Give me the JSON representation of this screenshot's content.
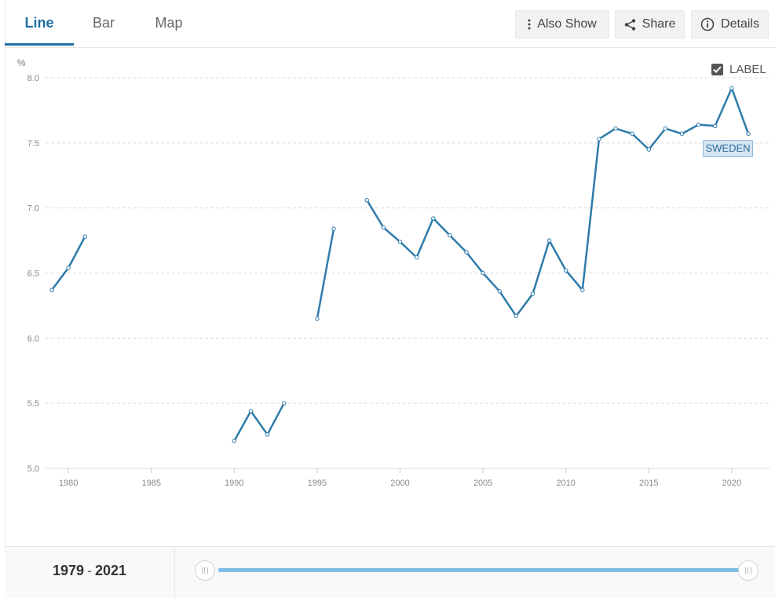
{
  "tabs": [
    {
      "label": "Line",
      "active": true
    },
    {
      "label": "Bar",
      "active": false
    },
    {
      "label": "Map",
      "active": false
    }
  ],
  "actions": {
    "also_show": "Also Show",
    "share": "Share",
    "details": "Details"
  },
  "label_toggle": {
    "text": "LABEL",
    "checked": true
  },
  "series_tag": "SWEDEN",
  "colors": {
    "accent": "#1f6fa3",
    "line": "#2e7bab",
    "slider": "#7fbde6"
  },
  "range": {
    "start": "1979",
    "separator": "-",
    "end": "2021"
  },
  "chart_data": {
    "type": "line",
    "ylabel": "%",
    "ylim": [
      5.0,
      8.0
    ],
    "yticks": [
      "5.0",
      "5.5",
      "6.0",
      "6.5",
      "7.0",
      "7.5",
      "8.0"
    ],
    "xlim": [
      1979,
      2021
    ],
    "xticks": [
      "1980",
      "1985",
      "1990",
      "1995",
      "2000",
      "2005",
      "2010",
      "2015",
      "2020"
    ],
    "grid": "horizontal-dashed",
    "series": [
      {
        "name": "SWEDEN",
        "points": [
          [
            1979,
            6.37
          ],
          [
            1980,
            6.54
          ],
          [
            1981,
            6.78
          ],
          [
            1982,
            null
          ],
          [
            1990,
            5.21
          ],
          [
            1991,
            5.44
          ],
          [
            1992,
            5.26
          ],
          [
            1993,
            5.5
          ],
          [
            1994,
            null
          ],
          [
            1995,
            6.15
          ],
          [
            1996,
            6.84
          ],
          [
            1997,
            null
          ],
          [
            1998,
            7.06
          ],
          [
            1999,
            6.85
          ],
          [
            2000,
            6.74
          ],
          [
            2001,
            6.62
          ],
          [
            2002,
            6.92
          ],
          [
            2003,
            6.79
          ],
          [
            2004,
            6.66
          ],
          [
            2005,
            6.5
          ],
          [
            2006,
            6.36
          ],
          [
            2007,
            6.17
          ],
          [
            2008,
            6.34
          ],
          [
            2009,
            6.75
          ],
          [
            2010,
            6.52
          ],
          [
            2011,
            6.37
          ],
          [
            2012,
            7.53
          ],
          [
            2013,
            7.61
          ],
          [
            2014,
            7.57
          ],
          [
            2015,
            7.45
          ],
          [
            2016,
            7.61
          ],
          [
            2017,
            7.57
          ],
          [
            2018,
            7.64
          ],
          [
            2019,
            7.63
          ],
          [
            2020,
            7.92
          ],
          [
            2021,
            7.57
          ]
        ]
      }
    ]
  }
}
